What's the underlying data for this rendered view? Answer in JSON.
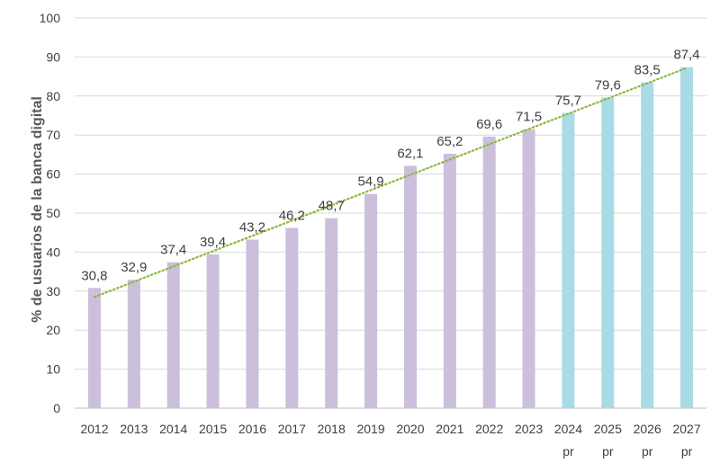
{
  "chart_data": {
    "type": "bar",
    "ylabel": "% de usuarios de la banca digital",
    "xlabel": "",
    "ylim": [
      0,
      100
    ],
    "yticks": [
      0,
      10,
      20,
      30,
      40,
      50,
      60,
      70,
      80,
      90,
      100
    ],
    "grid": true,
    "categories": [
      {
        "year": "2012",
        "suffix": ""
      },
      {
        "year": "2013",
        "suffix": ""
      },
      {
        "year": "2014",
        "suffix": ""
      },
      {
        "year": "2015",
        "suffix": ""
      },
      {
        "year": "2016",
        "suffix": ""
      },
      {
        "year": "2017",
        "suffix": ""
      },
      {
        "year": "2018",
        "suffix": ""
      },
      {
        "year": "2019",
        "suffix": ""
      },
      {
        "year": "2020",
        "suffix": ""
      },
      {
        "year": "2021",
        "suffix": ""
      },
      {
        "year": "2022",
        "suffix": ""
      },
      {
        "year": "2023",
        "suffix": ""
      },
      {
        "year": "2024",
        "suffix": "pr"
      },
      {
        "year": "2025",
        "suffix": "pr"
      },
      {
        "year": "2026",
        "suffix": "pr"
      },
      {
        "year": "2027",
        "suffix": "pr"
      }
    ],
    "values": [
      30.8,
      32.9,
      37.4,
      39.4,
      43.2,
      46.2,
      48.7,
      54.9,
      62.1,
      65.2,
      69.6,
      71.5,
      75.7,
      79.6,
      83.5,
      87.4
    ],
    "value_labels": [
      "30,8",
      "32,9",
      "37,4",
      "39,4",
      "43,2",
      "46,2",
      "48,7",
      "54,9",
      "62,1",
      "65,2",
      "69,6",
      "71,5",
      "75,7",
      "79,6",
      "83,5",
      "87,4"
    ],
    "projected_from_index": 12,
    "colors": {
      "actual": "#cbbfdc",
      "projected": "#a9dbe6",
      "trendline": "#8db93d",
      "grid": "#d9d9d9",
      "axis": "#bfbfbf"
    },
    "trendline": {
      "type": "linear",
      "style": "dotted",
      "start": 28.5,
      "end": 87.2
    }
  }
}
